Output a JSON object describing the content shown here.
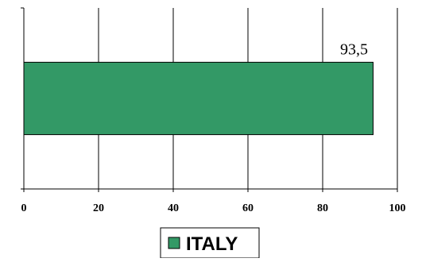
{
  "chart_data": {
    "type": "bar",
    "orientation": "horizontal",
    "categories": [
      ""
    ],
    "series": [
      {
        "name": "ITALY",
        "values": [
          93.5
        ],
        "color": "#339966"
      }
    ],
    "data_labels": [
      "93,5"
    ],
    "xlim": [
      0,
      100
    ],
    "x_ticks": [
      0,
      20,
      40,
      60,
      80,
      100
    ],
    "x_tick_labels": [
      "0",
      "20",
      "40",
      "60",
      "80",
      "100"
    ],
    "grid": "vertical",
    "legend_position": "bottom",
    "title": "",
    "xlabel": "",
    "ylabel": ""
  }
}
